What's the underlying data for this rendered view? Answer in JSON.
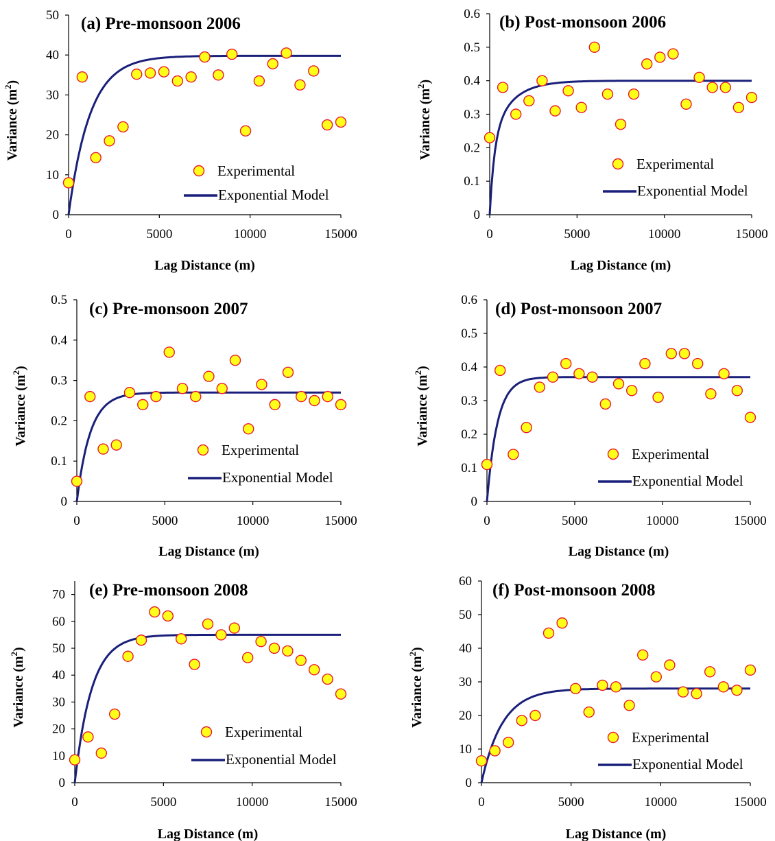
{
  "legend": {
    "experimental_label": "Experimental",
    "model_label": "Exponential Model"
  },
  "colors": {
    "marker_fill": "#ffff1a",
    "marker_stroke": "#e8192c",
    "model_line": "#1a1f7a"
  },
  "chart_data": [
    {
      "type": "scatter",
      "title": "(a) Pre-monsoon 2006",
      "xlabel": "Lag Distance (m)",
      "ylabel": "Variance (m",
      "ylabel_sup": "2",
      "ylabel_end": ")",
      "xlim": [
        0,
        15000
      ],
      "ylim": [
        0,
        50
      ],
      "xticks": [
        0,
        5000,
        10000,
        15000
      ],
      "yticks": [
        0,
        10,
        20,
        30,
        40,
        50
      ],
      "experimental": {
        "x": [
          0,
          750,
          1500,
          2250,
          3000,
          3750,
          4500,
          5250,
          6000,
          6750,
          7500,
          8250,
          9000,
          9750,
          10500,
          11250,
          12000,
          12750,
          13500,
          14250,
          15000
        ],
        "y": [
          8,
          34.5,
          14.3,
          18.5,
          22,
          35.2,
          35.5,
          35.8,
          33.5,
          34.5,
          39.5,
          35,
          40.2,
          21,
          33.5,
          37.8,
          40.5,
          32.5,
          36,
          22.5,
          23.2
        ]
      },
      "model": {
        "sill": 39.8,
        "range": 3550,
        "nugget": 0
      },
      "legend_position": "center-right"
    },
    {
      "type": "scatter",
      "title": "(b) Post-monsoon 2006",
      "xlabel": "Lag Distance (m)",
      "ylabel": "Variance (m",
      "ylabel_sup": "2",
      "ylabel_end": ")",
      "xlim": [
        0,
        15000
      ],
      "ylim": [
        0,
        0.6
      ],
      "xticks": [
        0,
        5000,
        10000,
        15000
      ],
      "yticks": [
        0,
        0.1,
        0.2,
        0.3,
        0.4,
        0.5,
        0.6
      ],
      "experimental": {
        "x": [
          0,
          750,
          1500,
          2250,
          3000,
          3750,
          4500,
          5250,
          6000,
          6750,
          7500,
          8250,
          9000,
          9750,
          10500,
          11250,
          12000,
          12750,
          13500,
          14250,
          15000
        ],
        "y": [
          0.23,
          0.38,
          0.3,
          0.34,
          0.4,
          0.31,
          0.37,
          0.32,
          0.5,
          0.36,
          0.27,
          0.36,
          0.45,
          0.47,
          0.48,
          0.33,
          0.41,
          0.38,
          0.38,
          0.32,
          0.35
        ]
      },
      "model": {
        "sill": 0.4,
        "range": 3500,
        "nugget": 0.22,
        "nugget_rise": 800
      },
      "legend_position": "center-right"
    },
    {
      "type": "scatter",
      "title": "(c) Pre-monsoon 2007",
      "xlabel": "Lag Distance (m)",
      "ylabel": "Variance (m",
      "ylabel_sup": "2",
      "ylabel_end": ")",
      "xlim": [
        0,
        15000
      ],
      "ylim": [
        0,
        0.5
      ],
      "xticks": [
        0,
        5000,
        10000,
        15000
      ],
      "yticks": [
        0,
        0.1,
        0.2,
        0.3,
        0.4,
        0.5
      ],
      "experimental": {
        "x": [
          0,
          750,
          1500,
          2250,
          3000,
          3750,
          4500,
          5250,
          6000,
          6750,
          7500,
          8250,
          9000,
          9750,
          10500,
          11250,
          12000,
          12750,
          13500,
          14250,
          15000
        ],
        "y": [
          0.05,
          0.26,
          0.13,
          0.14,
          0.27,
          0.24,
          0.26,
          0.37,
          0.28,
          0.26,
          0.31,
          0.28,
          0.35,
          0.18,
          0.29,
          0.24,
          0.32,
          0.26,
          0.25,
          0.26,
          0.24
        ]
      },
      "model": {
        "sill": 0.27,
        "range": 2300,
        "nugget": 0
      },
      "legend_position": "center-right"
    },
    {
      "type": "scatter",
      "title": "(d) Post-monsoon 2007",
      "xlabel": "Lag Distance (m)",
      "ylabel": "Variance (m",
      "ylabel_sup": "2",
      "ylabel_end": ")",
      "xlim": [
        0,
        15000
      ],
      "ylim": [
        0,
        0.6
      ],
      "xticks": [
        0,
        5000,
        10000,
        15000
      ],
      "yticks": [
        0,
        0.1,
        0.2,
        0.3,
        0.4,
        0.5,
        0.6
      ],
      "experimental": {
        "x": [
          0,
          750,
          1500,
          2250,
          3000,
          3750,
          4500,
          5250,
          6000,
          6750,
          7500,
          8250,
          9000,
          9750,
          10500,
          11250,
          12000,
          12750,
          13500,
          14250,
          15000
        ],
        "y": [
          0.11,
          0.39,
          0.14,
          0.22,
          0.34,
          0.37,
          0.41,
          0.38,
          0.37,
          0.29,
          0.35,
          0.33,
          0.41,
          0.31,
          0.44,
          0.44,
          0.41,
          0.32,
          0.38,
          0.33,
          0.25
        ]
      },
      "model": {
        "sill": 0.37,
        "range": 1800,
        "nugget": 0
      },
      "legend_position": "center-right"
    },
    {
      "type": "scatter",
      "title": "(e) Pre-monsoon 2008",
      "xlabel": "Lag Distance (m)",
      "ylabel": "Variance (m",
      "ylabel_sup": "2",
      "ylabel_end": ")",
      "xlim": [
        0,
        15000
      ],
      "ylim": [
        0,
        75
      ],
      "xticks": [
        0,
        5000,
        10000,
        15000
      ],
      "yticks": [
        0,
        10,
        20,
        30,
        40,
        50,
        60,
        70
      ],
      "experimental": {
        "x": [
          0,
          750,
          1500,
          2250,
          3000,
          3750,
          4500,
          5250,
          6000,
          6750,
          7500,
          8250,
          9000,
          9750,
          10500,
          11250,
          12000,
          12750,
          13500,
          14250,
          15000
        ],
        "y": [
          8.5,
          17,
          11,
          25.5,
          47,
          53,
          63.5,
          62,
          53.5,
          44,
          59,
          55,
          57.5,
          46.5,
          52.5,
          50,
          49,
          45.5,
          42,
          38.5,
          33
        ]
      },
      "model": {
        "sill": 55,
        "range": 2850,
        "nugget": 0
      },
      "legend_position": "center-right"
    },
    {
      "type": "scatter",
      "title": "(f) Post-monsoon 2008",
      "xlabel": "Lag Distance (m)",
      "ylabel": "Variance (m",
      "ylabel_sup": "2",
      "ylabel_end": ")",
      "xlim": [
        0,
        15000
      ],
      "ylim": [
        0,
        60
      ],
      "xticks": [
        0,
        5000,
        10000,
        15000
      ],
      "yticks": [
        0,
        10,
        20,
        30,
        40,
        50,
        60
      ],
      "experimental": {
        "x": [
          0,
          750,
          1500,
          2250,
          3000,
          3750,
          4500,
          5250,
          6000,
          6750,
          7500,
          8250,
          9000,
          9750,
          10500,
          11250,
          12000,
          12750,
          13500,
          14250,
          15000
        ],
        "y": [
          6.5,
          9.5,
          12,
          18.5,
          20,
          44.5,
          47.5,
          28,
          21,
          29,
          28.5,
          23,
          38,
          31.5,
          35,
          27,
          26.5,
          33,
          28.5,
          27.5,
          33.5
        ]
      },
      "model": {
        "sill": 28,
        "range": 3500,
        "nugget": 0
      },
      "legend_position": "center-right"
    }
  ]
}
